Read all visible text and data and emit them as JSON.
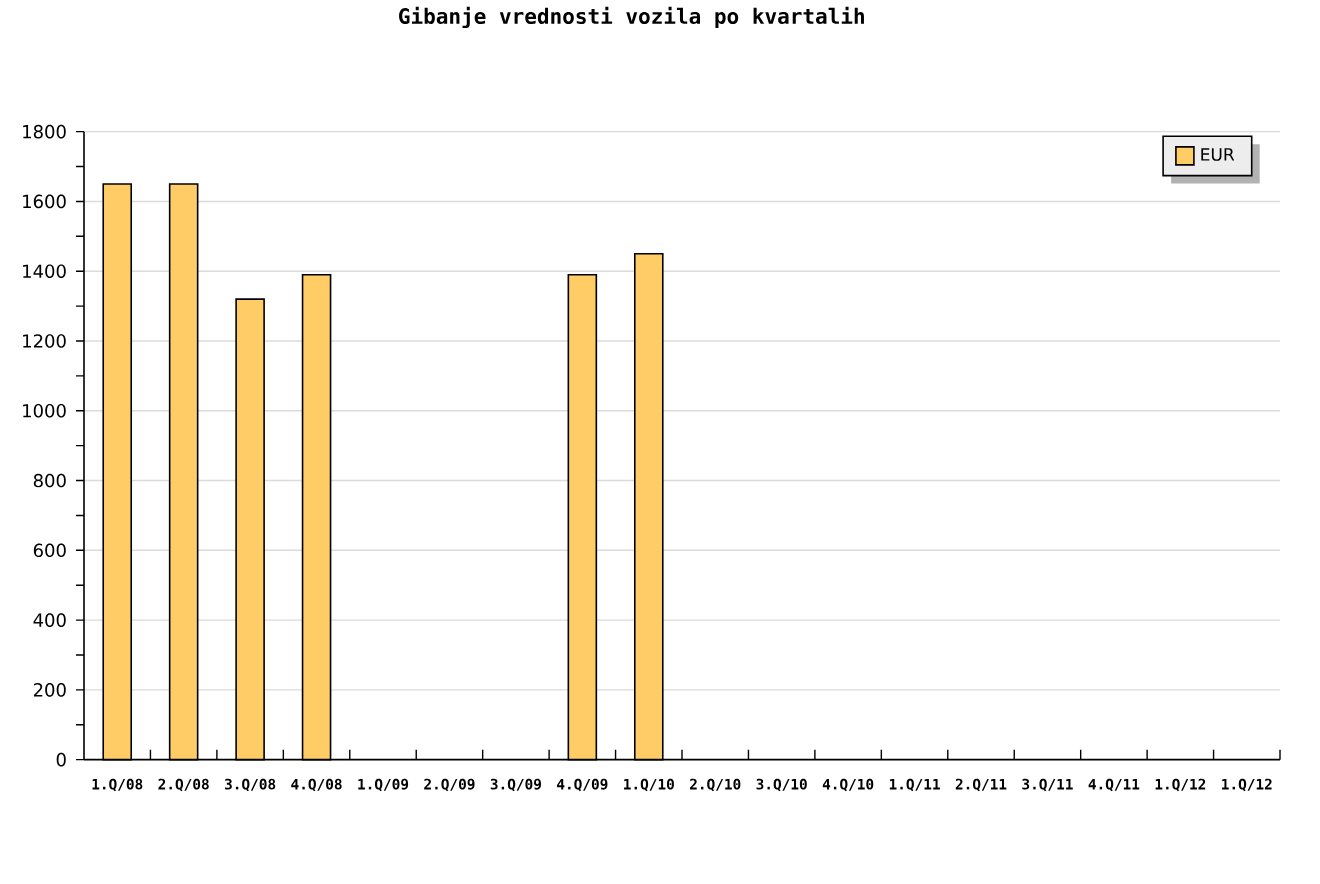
{
  "chart_data": {
    "type": "bar",
    "title": "Gibanje vrednosti vozila po kvartalih",
    "categories": [
      "1.Q/08",
      "2.Q/08",
      "3.Q/08",
      "4.Q/08",
      "1.Q/09",
      "2.Q/09",
      "3.Q/09",
      "4.Q/09",
      "1.Q/10",
      "2.Q/10",
      "3.Q/10",
      "4.Q/10",
      "1.Q/11",
      "2.Q/11",
      "3.Q/11",
      "4.Q/11",
      "1.Q/12",
      "1.Q/12"
    ],
    "series": [
      {
        "name": "EUR",
        "color": "#ffcc66",
        "values": [
          1650,
          1650,
          1320,
          1390,
          null,
          null,
          null,
          1390,
          1450,
          null,
          null,
          null,
          null,
          null,
          null,
          null,
          null,
          null
        ]
      }
    ],
    "ylim": [
      0,
      1800
    ],
    "yticks": [
      0,
      200,
      400,
      600,
      800,
      1000,
      1200,
      1400,
      1600,
      1800
    ],
    "grid": "y",
    "legend": "top right"
  }
}
